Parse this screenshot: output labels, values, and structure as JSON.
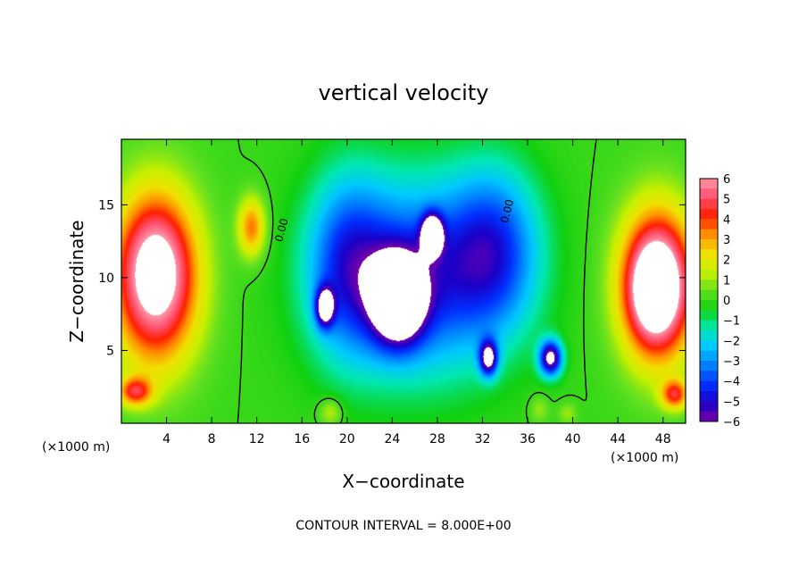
{
  "chart_data": {
    "type": "heatmap",
    "title": "vertical velocity",
    "xlabel": "X−coordinate",
    "ylabel": "Z−coordinate",
    "x_unit_label": "(×1000 m)",
    "y_unit_label": "(×1000 m)",
    "xlim": [
      0,
      50
    ],
    "ylim": [
      0,
      19.5
    ],
    "x_ticks": [
      4,
      8,
      12,
      16,
      20,
      24,
      28,
      32,
      36,
      40,
      44,
      48
    ],
    "y_ticks": [
      5,
      10,
      15
    ],
    "colorbar_ticks": [
      6,
      5,
      4,
      3,
      2,
      1,
      0,
      -1,
      -2,
      -3,
      -4,
      -5,
      -6
    ],
    "colorbar_range": [
      -6,
      6
    ],
    "contour_label": "0.00",
    "footer": "CONTOUR INTERVAL = 8.000E+00",
    "grid": false,
    "colormap": [
      "#7a00a8",
      "#1a00c8",
      "#0030ff",
      "#0080ff",
      "#00c8ff",
      "#00e8b0",
      "#10d010",
      "#60e020",
      "#c8f000",
      "#f0e000",
      "#ff9000",
      "#ff2000",
      "#ff5070",
      "#ff9aa8",
      "#ffffff"
    ],
    "features": [
      {
        "x": 3,
        "z": 8,
        "w": -0.5,
        "sx": 2.6,
        "sz": 3.2
      },
      {
        "x": 3,
        "z": 10,
        "w": 8.0,
        "sx": 3.6,
        "sz": 5.6
      },
      {
        "x": 11.5,
        "z": 13.5,
        "w": 3.5,
        "sx": 1.2,
        "sz": 2.0
      },
      {
        "x": 47,
        "z": 9,
        "w": 2.0,
        "sx": 2.0,
        "sz": 3.0
      },
      {
        "x": 47.5,
        "z": 9.5,
        "w": 8.0,
        "sx": 3.2,
        "sz": 5.0
      },
      {
        "x": 1.2,
        "z": 2.2,
        "w": 4.0,
        "sx": 1.5,
        "sz": 1.0
      },
      {
        "x": 49,
        "z": 2.0,
        "w": 4.0,
        "sx": 1.2,
        "sz": 1.0
      },
      {
        "x": 24.5,
        "z": 8.5,
        "w": -8.0,
        "sx": 2.2,
        "sz": 2.8
      },
      {
        "x": 27.5,
        "z": 13,
        "w": -7.0,
        "sx": 0.9,
        "sz": 1.3
      },
      {
        "x": 18,
        "z": 8,
        "w": -6.0,
        "sx": 0.8,
        "sz": 1.3
      },
      {
        "x": 32.5,
        "z": 4.5,
        "w": -6.0,
        "sx": 0.8,
        "sz": 1.2
      },
      {
        "x": 38,
        "z": 4.5,
        "w": -6.5,
        "sx": 1.0,
        "sz": 1.2
      },
      {
        "x": 26,
        "z": 10,
        "w": -4.5,
        "sx": 7.5,
        "sz": 6.5
      },
      {
        "x": 33,
        "z": 12,
        "w": -3.5,
        "sx": 4.0,
        "sz": 5.5
      },
      {
        "x": 20,
        "z": 11,
        "w": -3.0,
        "sx": 3.5,
        "sz": 6.0
      },
      {
        "x": 18.5,
        "z": 0.8,
        "w": 1.5,
        "sx": 1.0,
        "sz": 0.9
      },
      {
        "x": 37,
        "z": 1.0,
        "w": 1.0,
        "sx": 0.8,
        "sz": 0.9
      },
      {
        "x": 39.5,
        "z": 0.7,
        "w": 1.0,
        "sx": 0.8,
        "sz": 0.7
      }
    ]
  }
}
